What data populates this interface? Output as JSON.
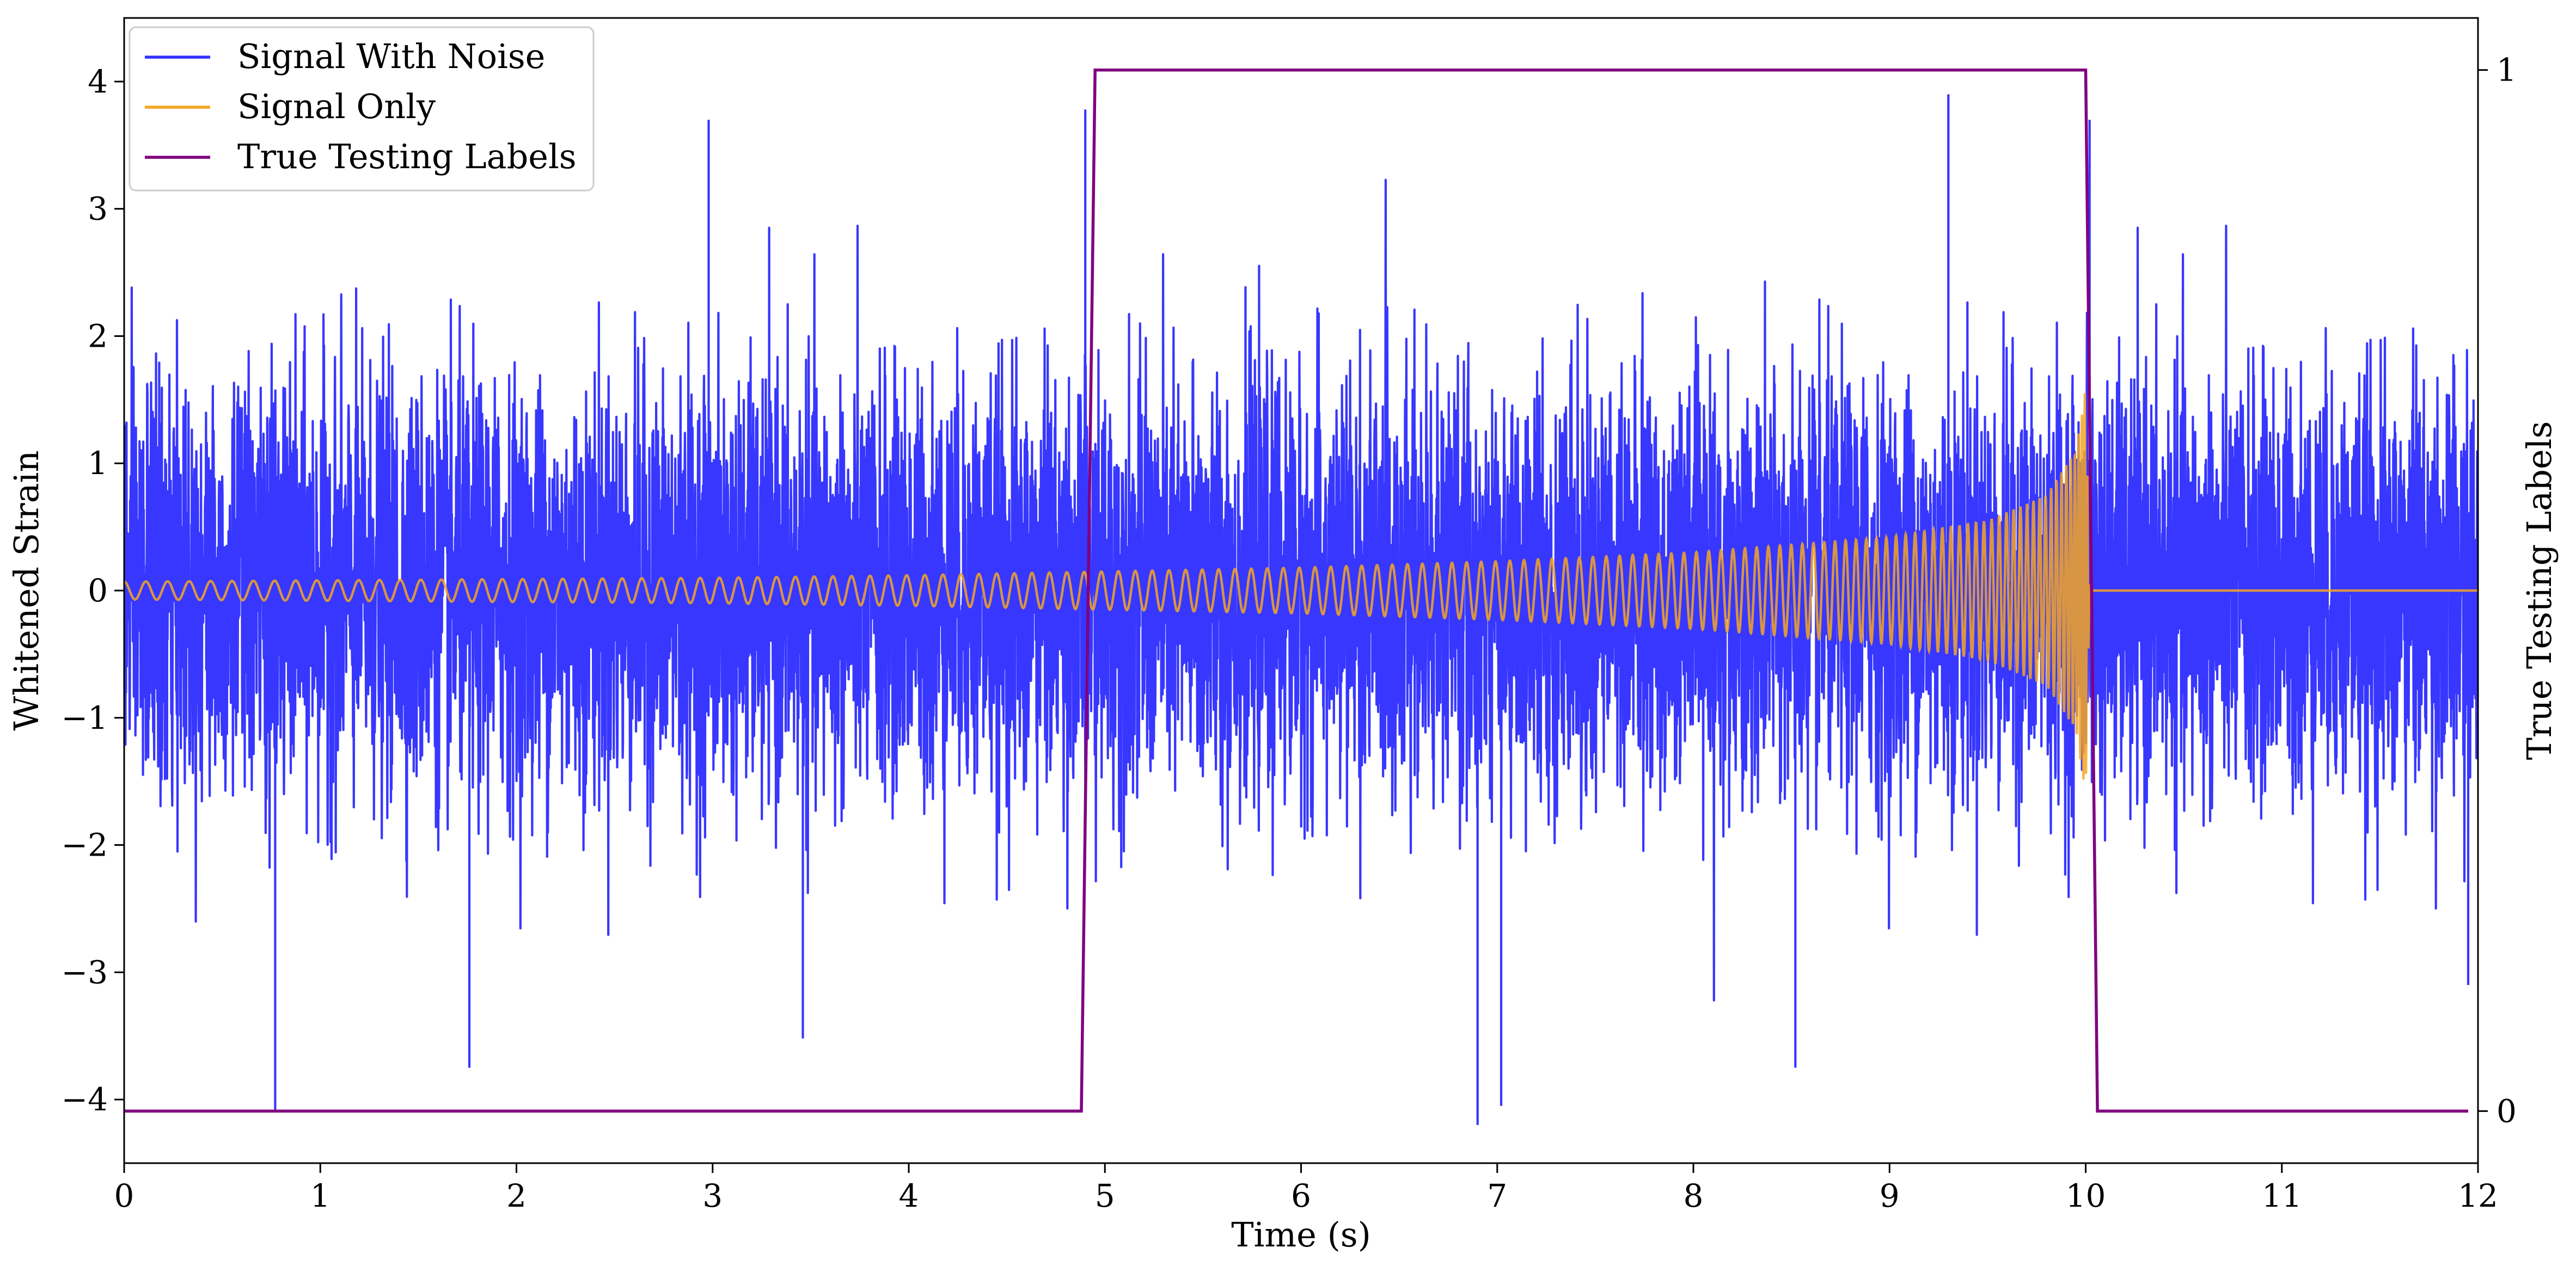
{
  "chart_data": {
    "type": "line",
    "title": "",
    "xlabel": "Time (s)",
    "ylabel": "Whitened Strain",
    "y2label": "True Testing Labels",
    "xlim": [
      0,
      12
    ],
    "ylim": [
      -4.5,
      4.5
    ],
    "y2lim": [
      -0.05,
      1.05
    ],
    "x_ticks": [
      "0",
      "1",
      "2",
      "3",
      "4",
      "5",
      "6",
      "7",
      "8",
      "9",
      "10",
      "11",
      "12"
    ],
    "y_ticks": [
      "−4",
      "−3",
      "−2",
      "−1",
      "0",
      "1",
      "2",
      "3",
      "4"
    ],
    "y2_ticks": [
      "0",
      "1"
    ],
    "grid": false,
    "legend_position": "top-left",
    "series": [
      {
        "name": "Signal With Noise",
        "axis": "left",
        "color": "#3333ff",
        "description_values": {
          "noise_std": 0.8,
          "x_range": [
            0,
            12
          ],
          "notable_peaks": [
            {
              "x": 0.77,
              "y": -4.08
            },
            {
              "x": 1.76,
              "y": -3.75
            },
            {
              "x": 2.98,
              "y": 3.7
            },
            {
              "x": 3.46,
              "y": -3.52
            },
            {
              "x": 4.9,
              "y": 3.78
            },
            {
              "x": 6.9,
              "y": -4.2
            },
            {
              "x": 7.02,
              "y": -4.05
            },
            {
              "x": 8.52,
              "y": -3.75
            },
            {
              "x": 9.3,
              "y": 3.9
            },
            {
              "x": 10.02,
              "y": 3.7
            },
            {
              "x": 11.95,
              "y": -3.1
            }
          ]
        }
      },
      {
        "name": "Signal Only",
        "axis": "left",
        "color": "#f5a623",
        "envelope": {
          "x": [
            0,
            1,
            2,
            3,
            4,
            5,
            6,
            7,
            8,
            9,
            9.5,
            9.8,
            9.95,
            10.0,
            10.02
          ],
          "amplitude": [
            0.07,
            0.08,
            0.09,
            0.1,
            0.12,
            0.15,
            0.18,
            0.23,
            0.3,
            0.42,
            0.55,
            0.75,
            1.1,
            1.6,
            0.0
          ]
        },
        "after_merger_value": 0.0
      },
      {
        "name": "True Testing Labels",
        "axis": "right",
        "color": "#800080",
        "x": [
          0,
          4.88,
          4.95,
          10.0,
          10.06,
          11.95
        ],
        "values": [
          0,
          0,
          1,
          1,
          0,
          0
        ]
      }
    ]
  }
}
